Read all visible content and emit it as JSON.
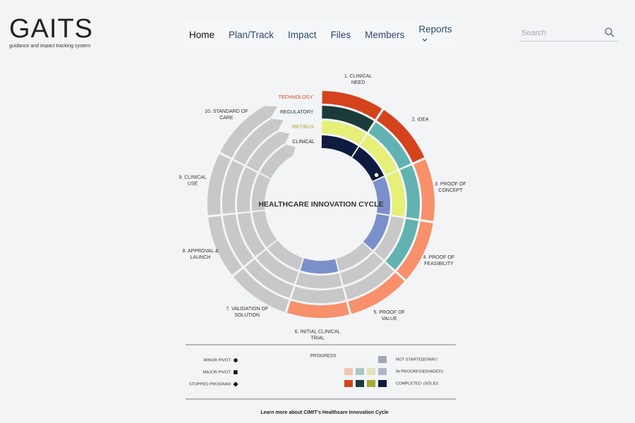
{
  "header": {
    "logo": "GAITS",
    "tagline": "guidance and impact tracking system",
    "nav": [
      "Home",
      "Plan/Track",
      "Impact",
      "Files",
      "Members",
      "Reports"
    ],
    "search_placeholder": "Search"
  },
  "diagram": {
    "title": "HEALTHCARE INNOVATION CYCLE",
    "rings": [
      {
        "name": "TECHNOLOGY",
        "label_color": "#d5431d",
        "segments": [
          "#d5431d",
          "#d5431d",
          "#f7906b",
          "#f7906b",
          "#f7906b",
          "#f7906b",
          "#c8c8c8",
          "#c8c8c8",
          "#c8c8c8",
          "#c8c8c8"
        ]
      },
      {
        "name": "REGULATORY",
        "label_color": "#1b3b3a",
        "segments": [
          "#1b3b3a",
          "#62b2b1",
          "#62b2b1",
          "#62b2b1",
          "#c8c8c8",
          "#c8c8c8",
          "#c8c8c8",
          "#c8c8c8",
          "#c8c8c8",
          "#c8c8c8"
        ]
      },
      {
        "name": "MKT/BUS",
        "label_color": "#a8a832",
        "segments": [
          "#e6ef78",
          "#e6ef78",
          "#e6ef78",
          "#c8c8c8",
          "#c8c8c8",
          "#c8c8c8",
          "#c8c8c8",
          "#c8c8c8",
          "#c8c8c8",
          "#c8c8c8"
        ]
      },
      {
        "name": "CLINICAL",
        "label_color": "#222222",
        "segments": [
          "#0e1a3f",
          "#0e1a3f",
          "#7b8fca",
          "#7b8fca",
          "#c8c8c8",
          "#7b8fca",
          "#c8c8c8",
          "#c8c8c8",
          "#c8c8c8",
          "#c8c8c8"
        ]
      }
    ],
    "stages": [
      [
        "1. CLINICAL",
        "NEED"
      ],
      [
        "2. IDEA"
      ],
      [
        "3. PROOF OF",
        "CONCEPT"
      ],
      [
        "4. PROOF OF",
        "FEASIBILITY"
      ],
      [
        "5. PROOF OF",
        "VALUE"
      ],
      [
        "6. INITIAL CLINICAL",
        "TRIAL"
      ],
      [
        "7. VALIDATION OF",
        "SOLUTION"
      ],
      [
        "8. APPROVAL &",
        "LAUNCH"
      ],
      [
        "9. CLINICAL",
        "USE"
      ],
      [
        "10. STANDARD OF",
        "CARE"
      ]
    ]
  },
  "legend": {
    "title": "PROGRESS",
    "markers": [
      "MINOR PIVOT",
      "MAJOR PIVOT",
      "STOPPED PROGRAM"
    ],
    "rows": [
      {
        "label": "NOT STARTED",
        "note": "(GRAY)",
        "colors": [
          "#a3a6b8"
        ]
      },
      {
        "label": "IN PROGRESS",
        "note": "(SHADED)",
        "colors": [
          "#f2c3b0",
          "#adc4c4",
          "#dfe3b8",
          "#aeb6c8"
        ]
      },
      {
        "label": "COMPLETED",
        "note": "(SOLID)",
        "colors": [
          "#d5431d",
          "#1b3b3a",
          "#a8a832",
          "#0e1a3f"
        ]
      }
    ]
  },
  "footer": {
    "link": "Learn more about CIMIT's Healthcare Innovation Cycle"
  }
}
